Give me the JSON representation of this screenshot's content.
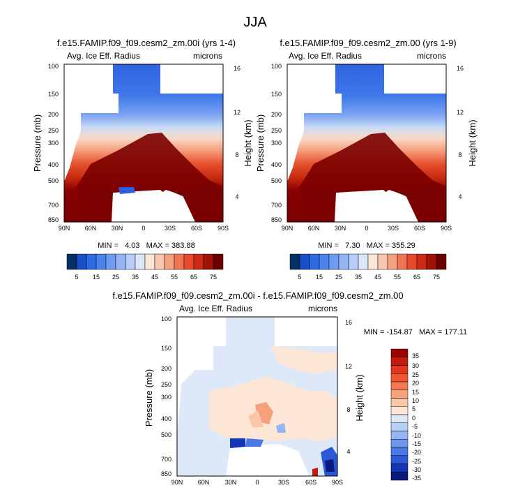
{
  "figure_title": "JJA",
  "chart_data": [
    {
      "type": "contour",
      "title": "f.e15.FAMIP.f09_f09.cesm2_zm.00i (yrs 1-4)",
      "left_label": "Avg. Ice Eff. Radius",
      "right_label": "microns",
      "ylabel": "Pressure (mb)",
      "y2label": "Height (km)",
      "xticks": [
        "90N",
        "60N",
        "30N",
        "0",
        "30S",
        "60S",
        "90S"
      ],
      "yticks": [
        "100",
        "150",
        "200",
        "250",
        "300",
        "400",
        "500",
        "700",
        "850"
      ],
      "y2ticks": [
        "16",
        "12",
        "8",
        "4"
      ],
      "stats": "MIN =   4.03   MAX = 383.88",
      "colorbar_levels": [
        "5",
        "15",
        "25",
        "35",
        "45",
        "55",
        "65",
        "75"
      ],
      "colorbar_colors": [
        "#053061",
        "#1a4fcb",
        "#2f6be3",
        "#4b84ef",
        "#6f9cf2",
        "#94b5f5",
        "#b6cdf7",
        "#dbe6f9",
        "#fde7d9",
        "#f9c6ad",
        "#f5a07f",
        "#f07554",
        "#e64a2d",
        "#cc2a17",
        "#a11309",
        "#6d0000"
      ]
    },
    {
      "type": "contour",
      "title": "f.e15.FAMIP.f09_f09.cesm2_zm.00 (yrs 1-9)",
      "left_label": "Avg. Ice Eff. Radius",
      "right_label": "microns",
      "ylabel": "Pressure (mb)",
      "y2label": "Height (km)",
      "xticks": [
        "90N",
        "60N",
        "30N",
        "0",
        "30S",
        "60S",
        "90S"
      ],
      "yticks": [
        "100",
        "150",
        "200",
        "250",
        "300",
        "400",
        "500",
        "700",
        "850"
      ],
      "y2ticks": [
        "16",
        "12",
        "8",
        "4"
      ],
      "stats": "MIN =   7.30   MAX = 355.29",
      "colorbar_levels": [
        "5",
        "15",
        "25",
        "35",
        "45",
        "55",
        "65",
        "75"
      ]
    },
    {
      "type": "contour",
      "title": "f.e15.FAMIP.f09_f09.cesm2_zm.00i - f.e15.FAMIP.f09_f09.cesm2_zm.00",
      "left_label": "Avg. Ice Eff. Radius",
      "right_label": "microns",
      "ylabel": "Pressure (mb)",
      "y2label": "Height (km)",
      "xticks": [
        "90N",
        "60N",
        "30N",
        "0",
        "30S",
        "60S",
        "90S"
      ],
      "yticks": [
        "100",
        "150",
        "200",
        "250",
        "300",
        "400",
        "500",
        "700",
        "850"
      ],
      "y2ticks": [
        "16",
        "12",
        "8",
        "4"
      ],
      "stats": "MIN = -154.87   MAX = 177.11",
      "colorbar_levels": [
        "35",
        "30",
        "25",
        "20",
        "15",
        "10",
        "5",
        "0",
        "-5",
        "-10",
        "-15",
        "-20",
        "-25",
        "-30",
        "-35"
      ],
      "colorbar_colors": [
        "#9e0000",
        "#c41a0c",
        "#e0361c",
        "#f05630",
        "#f47a52",
        "#f7a07c",
        "#fbc5a8",
        "#fde6d6",
        "#dce8f7",
        "#b9d0f6",
        "#95b6f3",
        "#6f98ef",
        "#4a78e6",
        "#2a58d6",
        "#1336b5",
        "#0a1a7c"
      ]
    }
  ]
}
